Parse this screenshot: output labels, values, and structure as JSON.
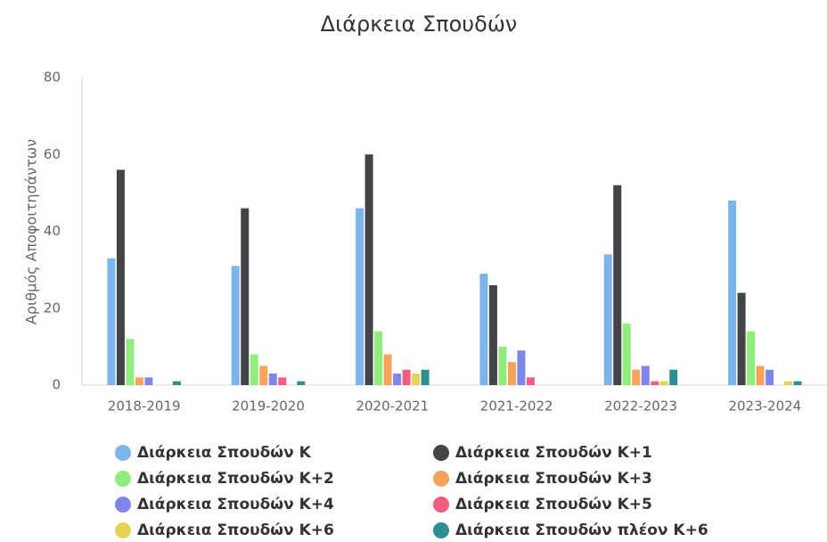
{
  "chart_data": {
    "type": "bar",
    "title": "Διάρκεια Σπουδών",
    "y_label": "Αριθμός Αποφοιτησάντων",
    "categories": [
      "2018-2019",
      "2019-2020",
      "2020-2021",
      "2021-2022",
      "2022-2023",
      "2023-2024"
    ],
    "ylim": [
      0,
      80
    ],
    "yticks": [
      0,
      20,
      40,
      60,
      80
    ],
    "grid": false,
    "legend": "bottom",
    "series": [
      {
        "name": "Διάρκεια Σπουδών Κ",
        "color": "#7cb5ec",
        "values": [
          33,
          31,
          46,
          29,
          34,
          48
        ]
      },
      {
        "name": "Διάρκεια Σπουδών Κ+1",
        "color": "#434348",
        "values": [
          56,
          46,
          60,
          26,
          52,
          24
        ]
      },
      {
        "name": "Διάρκεια Σπουδών Κ+2",
        "color": "#90ed7d",
        "values": [
          12,
          8,
          14,
          10,
          16,
          14
        ]
      },
      {
        "name": "Διάρκεια Σπουδών Κ+3",
        "color": "#f7a35c",
        "values": [
          2,
          5,
          8,
          6,
          4,
          5
        ]
      },
      {
        "name": "Διάρκεια Σπουδών Κ+4",
        "color": "#8085e9",
        "values": [
          2,
          3,
          3,
          9,
          5,
          4
        ]
      },
      {
        "name": "Διάρκεια Σπουδών Κ+5",
        "color": "#f15c80",
        "values": [
          0,
          2,
          4,
          2,
          1,
          0
        ]
      },
      {
        "name": "Διάρκεια Σπουδών Κ+6",
        "color": "#e4d354",
        "values": [
          0,
          0,
          3,
          0,
          1,
          1
        ]
      },
      {
        "name": "Διάρκεια Σπουδών πλέον Κ+6",
        "color": "#2b908f",
        "values": [
          1,
          1,
          4,
          0,
          4,
          1
        ]
      }
    ]
  }
}
